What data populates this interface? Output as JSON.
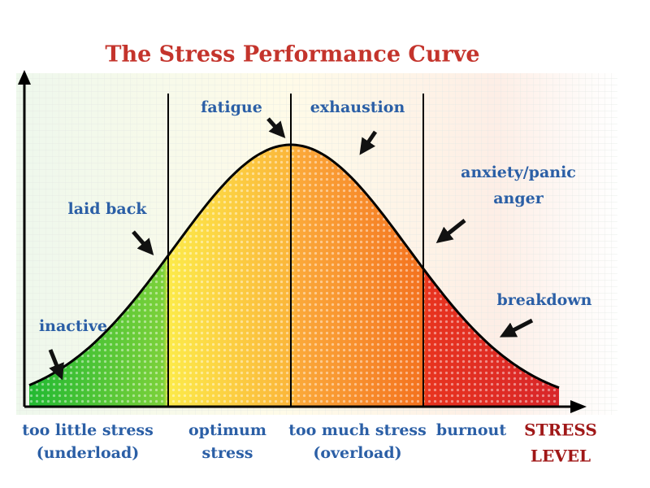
{
  "title": "The Stress Performance Curve",
  "curve_labels": [
    {
      "lines": [
        "inactive"
      ]
    },
    {
      "lines": [
        "laid back"
      ]
    },
    {
      "lines": [
        "fatigue"
      ]
    },
    {
      "lines": [
        "exhaustion"
      ]
    },
    {
      "lines": [
        "anxiety/panic",
        "anger"
      ]
    },
    {
      "lines": [
        "breakdown"
      ]
    }
  ],
  "zones": [
    {
      "lines": [
        "too little stress",
        "(underload)"
      ]
    },
    {
      "lines": [
        "optimum",
        "stress"
      ]
    },
    {
      "lines": [
        "too much stress",
        "(overload)"
      ]
    },
    {
      "lines": [
        "burnout"
      ]
    }
  ],
  "axis_label": [
    "STRESS",
    "LEVEL"
  ]
}
